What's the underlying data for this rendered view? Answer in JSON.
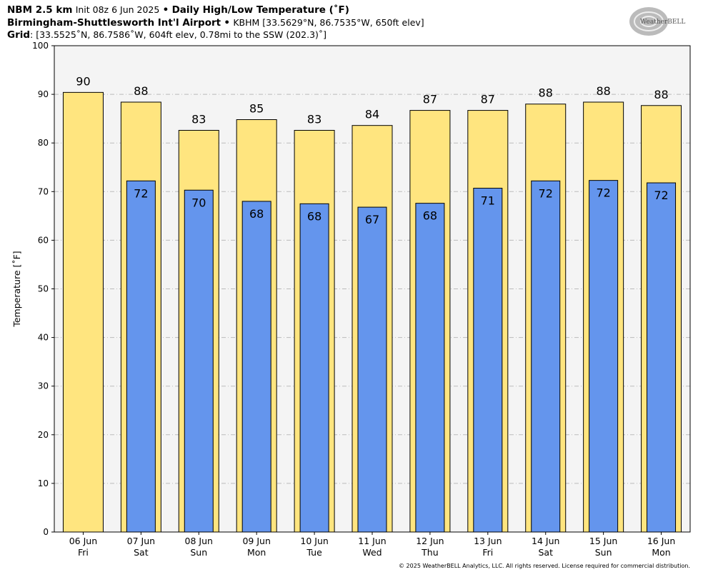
{
  "header": {
    "model": "NBM 2.5 km",
    "init": "Init 08z 6 Jun 2025",
    "sep": "•",
    "product": "Daily High/Low Temperature (˚F)",
    "station": "Birmingham-Shuttlesworth Int'l Airport",
    "station_info": "KBHM [33.5629°N, 86.7535°W, 650ft elev]",
    "grid_label": "Grid",
    "grid_info": ": [33.5525˚N, 86.7586˚W, 604ft elev, 0.78mi to the SSW (202.3)˚]"
  },
  "logo": {
    "text": "WeatherBELL"
  },
  "footer": "© 2025 WeatherBELL Analytics, LLC. All rights reserved. License required for commercial distribution.",
  "chart_data": {
    "type": "bar",
    "title": "Daily High/Low Temperature (˚F)",
    "ylabel": "Temperature [˚F]",
    "ylim": [
      0,
      100
    ],
    "yticks": [
      0,
      10,
      20,
      30,
      40,
      50,
      60,
      70,
      80,
      90,
      100
    ],
    "grid": true,
    "categories": [
      [
        "06 Jun",
        "Fri"
      ],
      [
        "07 Jun",
        "Sat"
      ],
      [
        "08 Jun",
        "Sun"
      ],
      [
        "09 Jun",
        "Mon"
      ],
      [
        "10 Jun",
        "Tue"
      ],
      [
        "11 Jun",
        "Wed"
      ],
      [
        "12 Jun",
        "Thu"
      ],
      [
        "13 Jun",
        "Fri"
      ],
      [
        "14 Jun",
        "Sat"
      ],
      [
        "15 Jun",
        "Sun"
      ],
      [
        "16 Jun",
        "Mon"
      ]
    ],
    "series": [
      {
        "role": "high",
        "color": "#FFE57F",
        "values": [
          90.4,
          88.4,
          82.6,
          84.8,
          82.6,
          83.6,
          86.7,
          86.7,
          88.0,
          88.4,
          87.7
        ],
        "labels": [
          "90",
          "88",
          "83",
          "85",
          "83",
          "84",
          "87",
          "87",
          "88",
          "88",
          "88"
        ]
      },
      {
        "role": "low",
        "color": "#6495ED",
        "values": [
          null,
          72.2,
          70.3,
          68.0,
          67.5,
          66.8,
          67.6,
          70.7,
          72.2,
          72.3,
          71.8
        ],
        "labels": [
          "",
          "72",
          "70",
          "68",
          "68",
          "67",
          "68",
          "71",
          "72",
          "72",
          "72"
        ]
      }
    ]
  }
}
